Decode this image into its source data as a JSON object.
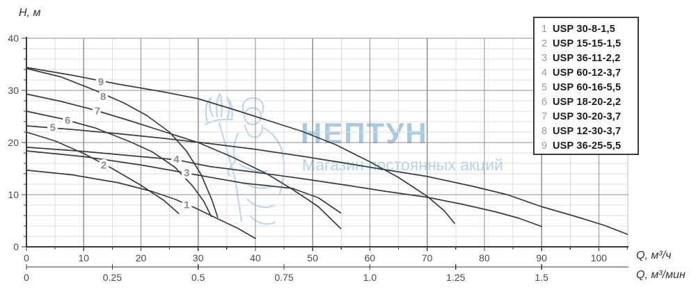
{
  "watermark": {
    "name": "НЕПТУН",
    "tagline": "Магазин постоянных акций"
  },
  "legend": {
    "items": [
      {
        "num": "1",
        "model": "USP 30-8-1,5"
      },
      {
        "num": "2",
        "model": "USP 15-15-1,5"
      },
      {
        "num": "3",
        "model": "USP 36-11-2,2"
      },
      {
        "num": "4",
        "model": "USP 60-12-3,7"
      },
      {
        "num": "5",
        "model": "USP 60-16-5,5"
      },
      {
        "num": "6",
        "model": "USP 18-20-2,2"
      },
      {
        "num": "7",
        "model": "USP 30-20-3,7"
      },
      {
        "num": "8",
        "model": "USP 12-30-3,7"
      },
      {
        "num": "9",
        "model": "USP 36-25-5,5"
      }
    ]
  },
  "colors": {
    "curve": "#3b3b3b",
    "curve_label": "#8e8e8e",
    "grid_minor": "#dcdcdc",
    "grid_major": "#8f8f8f",
    "axis": "#3a3a3a",
    "tick_text": "#4a4a4a",
    "watermark_title": "#a6c9e8",
    "watermark_tagline": "#b3d2ee"
  },
  "chart_data": {
    "type": "line",
    "title": "",
    "y_axis": {
      "label": "H, м",
      "min": 0,
      "max": 40,
      "major_step": 10,
      "minor_step": 2,
      "ticks": [
        0,
        10,
        20,
        30,
        40
      ]
    },
    "x_axis": {
      "label": "Q, м³/ч",
      "min": 0,
      "max": 105,
      "major_step": 10,
      "minor_step": 5,
      "ticks": [
        0,
        10,
        20,
        30,
        40,
        50,
        60,
        70,
        80,
        90,
        100
      ]
    },
    "x_axis_secondary": {
      "label": "Q, м³/мин",
      "unit_ratio_to_primary": 60,
      "ticks": [
        0,
        0.25,
        0.5,
        0.75,
        1.0,
        1.25,
        1.5
      ],
      "tick_labels": [
        "0",
        "0.25",
        "0.5",
        "0.75",
        "1.0",
        "1.25",
        "1.5"
      ]
    },
    "grid": true,
    "legend_position": "top-right",
    "series": [
      {
        "id": "1",
        "name": "USP 30-8-1,5",
        "label_pos": [
          28,
          8.1
        ],
        "points": [
          [
            0,
            14.7
          ],
          [
            8,
            13.8
          ],
          [
            16,
            12.3
          ],
          [
            22,
            10.6
          ],
          [
            26,
            9.1
          ],
          [
            29.2,
            7.6
          ],
          [
            33,
            5.6
          ],
          [
            37,
            3.5
          ],
          [
            40,
            1.6
          ]
        ]
      },
      {
        "id": "2",
        "name": "USP 15-15-1,5",
        "label_pos": [
          13.5,
          15.7
        ],
        "points": [
          [
            0,
            22
          ],
          [
            5,
            20.3
          ],
          [
            10,
            17.9
          ],
          [
            15,
            15
          ],
          [
            20,
            11.8
          ],
          [
            24,
            8.9
          ],
          [
            26.6,
            6.4
          ]
        ]
      },
      {
        "id": "3",
        "name": "USP 36-11-2,2",
        "label_pos": [
          28,
          14.2
        ],
        "points": [
          [
            0,
            18.4
          ],
          [
            10,
            17.3
          ],
          [
            20,
            15.7
          ],
          [
            29.7,
            13.8
          ],
          [
            38,
            12.2
          ],
          [
            46.5,
            11.2
          ],
          [
            51,
            9.4
          ],
          [
            54.9,
            6.5
          ]
        ]
      },
      {
        "id": "4",
        "name": "USP 60-12-3,7",
        "label_pos": [
          26.2,
          16.8
        ],
        "points": [
          [
            0,
            19.1
          ],
          [
            10,
            18.3
          ],
          [
            20,
            17.3
          ],
          [
            26.2,
            16.7
          ],
          [
            32,
            15.4
          ],
          [
            40,
            14.3
          ],
          [
            48,
            13.1
          ],
          [
            56,
            11.8
          ],
          [
            63,
            10.6
          ],
          [
            70,
            9.5
          ],
          [
            76,
            8.2
          ],
          [
            82,
            6.7
          ],
          [
            86,
            5.5
          ],
          [
            90,
            3.9
          ]
        ]
      },
      {
        "id": "5",
        "name": "USP 60-16-5,5",
        "label_pos": [
          4.6,
          22.9
        ],
        "points": [
          [
            0,
            23.2
          ],
          [
            8,
            22.5
          ],
          [
            16,
            21.7
          ],
          [
            24,
            20.8
          ],
          [
            32,
            19.8
          ],
          [
            40,
            18.7
          ],
          [
            48,
            17.4
          ],
          [
            56,
            16
          ],
          [
            62,
            14.9
          ],
          [
            70,
            13.5
          ],
          [
            78,
            11.6
          ],
          [
            84,
            10
          ],
          [
            90,
            7.7
          ],
          [
            96,
            5.8
          ],
          [
            101,
            4.1
          ],
          [
            105,
            2.4
          ]
        ]
      },
      {
        "id": "6",
        "name": "USP 18-20-2,2",
        "label_pos": [
          7.2,
          24.3
        ],
        "points": [
          [
            0,
            26
          ],
          [
            6,
            24.6
          ],
          [
            12,
            22.8
          ],
          [
            18,
            20.2
          ],
          [
            22,
            18.2
          ],
          [
            26,
            15.2
          ],
          [
            29,
            11.7
          ],
          [
            31,
            8.7
          ],
          [
            32.3,
            5.8
          ]
        ]
      },
      {
        "id": "7",
        "name": "USP 30-20-3,7",
        "label_pos": [
          12.4,
          26.1
        ],
        "points": [
          [
            0,
            29.3
          ],
          [
            6,
            27.9
          ],
          [
            12,
            26.2
          ],
          [
            18,
            24.2
          ],
          [
            24,
            22.1
          ],
          [
            30,
            20
          ],
          [
            36,
            17.2
          ],
          [
            42,
            14
          ],
          [
            46.5,
            11
          ],
          [
            51,
            7.7
          ],
          [
            54.9,
            3.5
          ]
        ]
      },
      {
        "id": "8",
        "name": "USP 12-30-3,7",
        "label_pos": [
          13.4,
          28.8
        ],
        "points": [
          [
            0,
            34.2
          ],
          [
            6,
            32.6
          ],
          [
            12,
            30
          ],
          [
            17,
            27.6
          ],
          [
            21,
            25.2
          ],
          [
            25,
            22
          ],
          [
            28,
            18.3
          ],
          [
            30.5,
            13.9
          ],
          [
            32.4,
            9
          ],
          [
            33.4,
            5.7
          ]
        ]
      },
      {
        "id": "9",
        "name": "USP 36-25-5,5",
        "label_pos": [
          13,
          31.7
        ],
        "points": [
          [
            0,
            34.4
          ],
          [
            8,
            32.9
          ],
          [
            16,
            31.2
          ],
          [
            24,
            29.7
          ],
          [
            30,
            28.4
          ],
          [
            36,
            26.4
          ],
          [
            42,
            24.3
          ],
          [
            48,
            22.2
          ],
          [
            54,
            19.6
          ],
          [
            60,
            16.3
          ],
          [
            65,
            13.3
          ],
          [
            70,
            9.7
          ],
          [
            73,
            6.9
          ],
          [
            74.8,
            4.5
          ]
        ]
      }
    ]
  }
}
